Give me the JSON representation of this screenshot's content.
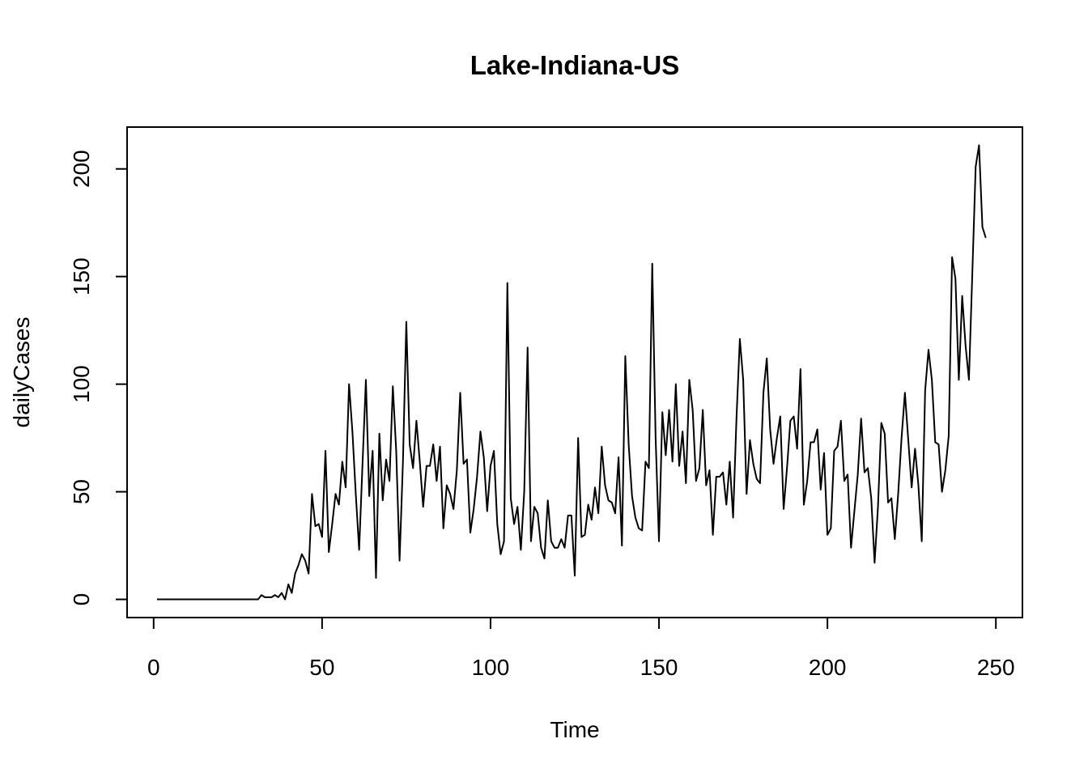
{
  "chart_data": {
    "type": "line",
    "title": "Lake-Indiana-US",
    "xlabel": "Time",
    "ylabel": "dailyCases",
    "xlim": [
      -7.88,
      257.88
    ],
    "ylim": [
      -8.44,
      219.44
    ],
    "x_ticks": [
      0,
      50,
      100,
      150,
      200,
      250
    ],
    "y_ticks": [
      0,
      50,
      100,
      150,
      200
    ],
    "grid": false,
    "legend": "none",
    "series": [
      {
        "x_start": 1,
        "values": [
          0,
          0,
          0,
          0,
          0,
          0,
          0,
          0,
          0,
          0,
          0,
          0,
          0,
          0,
          0,
          0,
          0,
          0,
          0,
          0,
          0,
          0,
          0,
          0,
          0,
          0,
          0,
          0,
          0,
          0,
          0,
          2,
          1,
          1,
          1,
          2,
          1,
          3,
          0,
          7,
          3,
          12,
          16,
          21,
          18,
          12,
          49,
          34,
          35,
          29,
          69,
          22,
          35,
          49,
          44,
          64,
          52,
          100,
          78,
          49,
          23,
          63,
          102,
          48,
          69,
          10,
          77,
          46,
          65,
          55,
          99,
          69,
          18,
          64,
          129,
          72,
          61,
          83,
          64,
          43,
          62,
          62,
          72,
          55,
          71,
          33,
          53,
          49,
          42,
          60,
          96,
          63,
          65,
          31,
          42,
          57,
          78,
          66,
          41,
          62,
          69,
          35,
          21,
          27,
          147,
          47,
          35,
          43,
          23,
          50,
          117,
          27,
          43,
          40,
          24,
          19,
          46,
          27,
          24,
          24,
          28,
          24,
          39,
          39,
          11,
          75,
          29,
          30,
          44,
          37,
          52,
          40,
          71,
          53,
          46,
          45,
          40,
          66,
          25,
          113,
          72,
          48,
          38,
          33,
          32,
          64,
          61,
          156,
          75,
          27,
          87,
          67,
          88,
          64,
          100,
          62,
          78,
          54,
          102,
          88,
          55,
          61,
          88,
          53,
          60,
          30,
          57,
          57,
          59,
          44,
          64,
          38,
          84,
          121,
          102,
          49,
          74,
          63,
          56,
          54,
          96,
          112,
          79,
          63,
          75,
          85,
          42,
          61,
          83,
          85,
          70,
          107,
          44,
          55,
          73,
          73,
          79,
          51,
          68,
          30,
          33,
          69,
          71,
          83,
          55,
          58,
          24,
          41,
          58,
          84,
          59,
          61,
          47,
          17,
          43,
          82,
          77,
          45,
          47,
          28,
          49,
          75,
          96,
          74,
          52,
          70,
          53,
          27,
          97,
          116,
          102,
          73,
          72,
          50,
          60,
          76,
          159,
          149,
          102,
          141,
          118,
          102,
          151,
          201,
          211,
          173,
          168
        ]
      }
    ]
  }
}
